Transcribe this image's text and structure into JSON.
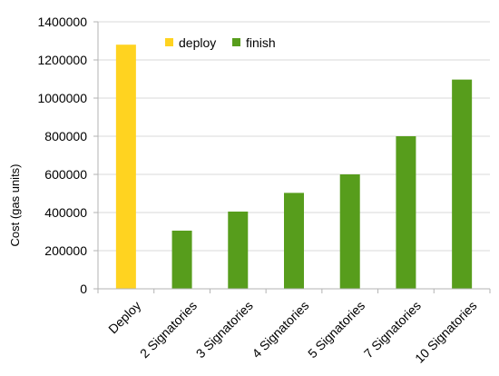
{
  "chart_data": {
    "type": "bar",
    "title": "",
    "xlabel": "",
    "ylabel": "Cost (gas units)",
    "ylim": [
      0,
      1400000
    ],
    "yticks": [
      0,
      200000,
      400000,
      600000,
      800000,
      1000000,
      1200000,
      1400000
    ],
    "grid": true,
    "legend_position": "top-center",
    "categories": [
      "Deploy",
      "2 Signatories",
      "3 Signatories",
      "4 Signatories",
      "5 Signatories",
      "7 Signatories",
      "10 Signatories"
    ],
    "series": [
      {
        "name": "deploy",
        "color": "#ffd320",
        "values": [
          1280000,
          null,
          null,
          null,
          null,
          null,
          null
        ]
      },
      {
        "name": "finish",
        "color": "#579d1c",
        "values": [
          null,
          305000,
          405000,
          503000,
          600000,
          800000,
          1097000
        ]
      }
    ]
  }
}
